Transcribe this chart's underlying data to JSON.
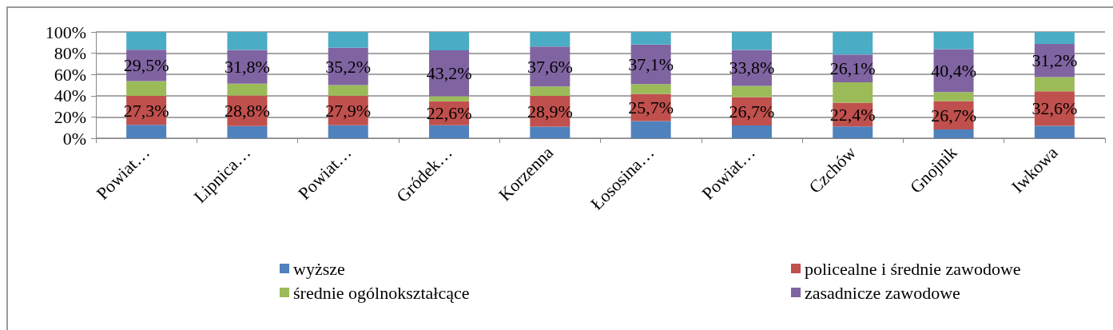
{
  "chart_data": {
    "type": "bar",
    "stacked": true,
    "categories": [
      "Powiat…",
      "Lipnica…",
      "Powiat…",
      "Gródek…",
      "Korzenna",
      "Łososina…",
      "Powiat…",
      "Czchów",
      "Gnojnik",
      "Iwkowa"
    ],
    "series": [
      {
        "name": "wyższe",
        "color": "#4f81bd",
        "values": [
          12.6,
          11.5,
          12.2,
          12.2,
          10.9,
          16.1,
          12.0,
          11.0,
          8.2,
          11.6
        ]
      },
      {
        "name": "policealne i średnie zawodowe",
        "color": "#c0504d",
        "values": [
          27.3,
          28.8,
          27.9,
          22.6,
          28.9,
          25.7,
          26.7,
          22.4,
          26.7,
          32.6
        ],
        "value_labels": [
          "27,3%",
          "28,8%",
          "27,9%",
          "22,6%",
          "28,9%",
          "25,7%",
          "26,7%",
          "22,4%",
          "26,7%",
          "32,6%"
        ]
      },
      {
        "name": "średnie ogólnokształcące",
        "color": "#9bbb59",
        "values": [
          13.8,
          11.0,
          9.9,
          4.7,
          8.8,
          9.2,
          10.6,
          19.3,
          8.6,
          13.3
        ]
      },
      {
        "name": "zasadnicze zawodowe",
        "color": "#8064a2",
        "values": [
          29.5,
          31.8,
          35.2,
          43.2,
          37.6,
          37.1,
          33.8,
          26.1,
          40.4,
          31.2
        ],
        "value_labels": [
          "29,5%",
          "31,8%",
          "35,2%",
          "43,2%",
          "37,6%",
          "37,1%",
          "33,8%",
          "26,1%",
          "40,4%",
          "31,2%"
        ]
      },
      {
        "color": "#4bacc6",
        "values": [
          16.8,
          16.9,
          14.8,
          17.3,
          13.8,
          11.9,
          16.9,
          21.2,
          16.1,
          11.3
        ]
      }
    ],
    "ylim": [
      0,
      100
    ],
    "yticks": [
      {
        "value": 0,
        "label": "0%"
      },
      {
        "value": 20,
        "label": "20%"
      },
      {
        "value": 40,
        "label": "40%"
      },
      {
        "value": 60,
        "label": "60%"
      },
      {
        "value": 80,
        "label": "80%"
      },
      {
        "value": 100,
        "label": "100%"
      }
    ],
    "grid": "y",
    "legend": "bottom"
  }
}
